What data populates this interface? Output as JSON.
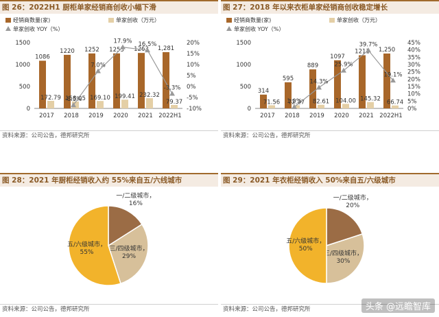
{
  "colors": {
    "bar": "#a8672a",
    "bar2": "#e4cfa6",
    "line": "#999999",
    "pie": [
      "#9b6c45",
      "#d7c09a",
      "#f2b32b"
    ]
  },
  "watermark": "头条 @远瞻智库",
  "chart_data": [
    {
      "type": "bar",
      "figure": "图 26：2022H1 厨柜单家经销商创收小幅下滑",
      "source": "资料来源：公司公告，德邦研究所",
      "categories": [
        "2017",
        "2018",
        "2019",
        "2020",
        "2021",
        "2022H1"
      ],
      "series": [
        {
          "name": "经销商数量(家)",
          "axis": "left",
          "kind": "bar",
          "values": [
            1086,
            1220,
            1252,
            1253,
            1263,
            1281
          ],
          "labels": [
            "1086",
            "1220",
            "1252",
            "1253",
            "1263",
            "1,281"
          ]
        },
        {
          "name": "单家创收（万元）",
          "axis": "left",
          "kind": "bar",
          "values": [
            172.79,
            158.05,
            169.1,
            199.41,
            232.32,
            79.37
          ],
          "labels": [
            "172.79",
            "158.05",
            "169.10",
            "199.41",
            "232.32",
            "79.37"
          ]
        },
        {
          "name": "单家创收 YOY（%）",
          "axis": "right",
          "kind": "line",
          "values": [
            null,
            -8.5,
            7.0,
            17.9,
            16.5,
            -3.3
          ],
          "labels": [
            "",
            "-8.5%",
            "7.0%",
            "17.9%",
            "16.5%",
            "-3.3%"
          ]
        }
      ],
      "ylim_left": [
        0,
        1500
      ],
      "yticks_left": [
        "0",
        "500",
        "1000",
        "1500"
      ],
      "ylim_right": [
        -10,
        20
      ],
      "yticks_right": [
        "-10%",
        "-5%",
        "0%",
        "5%",
        "10%",
        "15%",
        "20%"
      ]
    },
    {
      "type": "bar",
      "figure": "图 27：2018 年以来衣柜单家经销商创收稳定增长",
      "source": "资料来源：公司公告，德邦研究所",
      "categories": [
        "2017",
        "2018",
        "2019",
        "2020",
        "2021",
        "2022H1"
      ],
      "series": [
        {
          "name": "经销商数量(家)",
          "axis": "left",
          "kind": "bar",
          "values": [
            314,
            595,
            889,
            1097,
            1211,
            1250
          ],
          "labels": [
            "314",
            "595",
            "889",
            "1097",
            "1211",
            "1,250"
          ]
        },
        {
          "name": "单家创收（万元）",
          "axis": "left",
          "kind": "bar",
          "values": [
            71.56,
            72.27,
            82.61,
            104.0,
            145.32,
            66.74
          ],
          "labels": [
            "71.56",
            "72.27",
            "82.61",
            "104.00",
            "145.32",
            "66.74"
          ]
        },
        {
          "name": "单家创收 YOY（%）",
          "axis": "right",
          "kind": "line",
          "values": [
            null,
            1.0,
            14.3,
            25.9,
            39.7,
            19.1
          ],
          "labels": [
            "",
            "1.0%",
            "14.3%",
            "25.9%",
            "39.7%",
            "19.1%"
          ]
        }
      ],
      "ylim_left": [
        0,
        1500
      ],
      "yticks_left": [
        "0",
        "500",
        "1000",
        "1500"
      ],
      "ylim_right": [
        0,
        45
      ],
      "yticks_right": [
        "0%",
        "5%",
        "10%",
        "15%",
        "20%",
        "25%",
        "30%",
        "35%",
        "40%",
        "45%"
      ]
    },
    {
      "type": "pie",
      "figure": "图 28：2021 年厨柜经销收入约 55%来自五/六线城市",
      "source": "资料来源：公司公告，德邦研究所",
      "slices": [
        {
          "label": "一/二级城市，",
          "value": 16,
          "text": "16%"
        },
        {
          "label": "三/四级城市，",
          "value": 29,
          "text": "29%"
        },
        {
          "label": "五/六级城市，",
          "value": 55,
          "text": "55%"
        }
      ]
    },
    {
      "type": "pie",
      "figure": "图 29：2021 年衣柜经销收入 50%来自五/六级城市",
      "source": "资料来源：公司公告，德邦研究所",
      "slices": [
        {
          "label": "一/二级城市，",
          "value": 20,
          "text": "20%"
        },
        {
          "label": "三/四级城市，",
          "value": 30,
          "text": "30%"
        },
        {
          "label": "五/六级城市，",
          "value": 50,
          "text": "50%"
        }
      ]
    }
  ]
}
